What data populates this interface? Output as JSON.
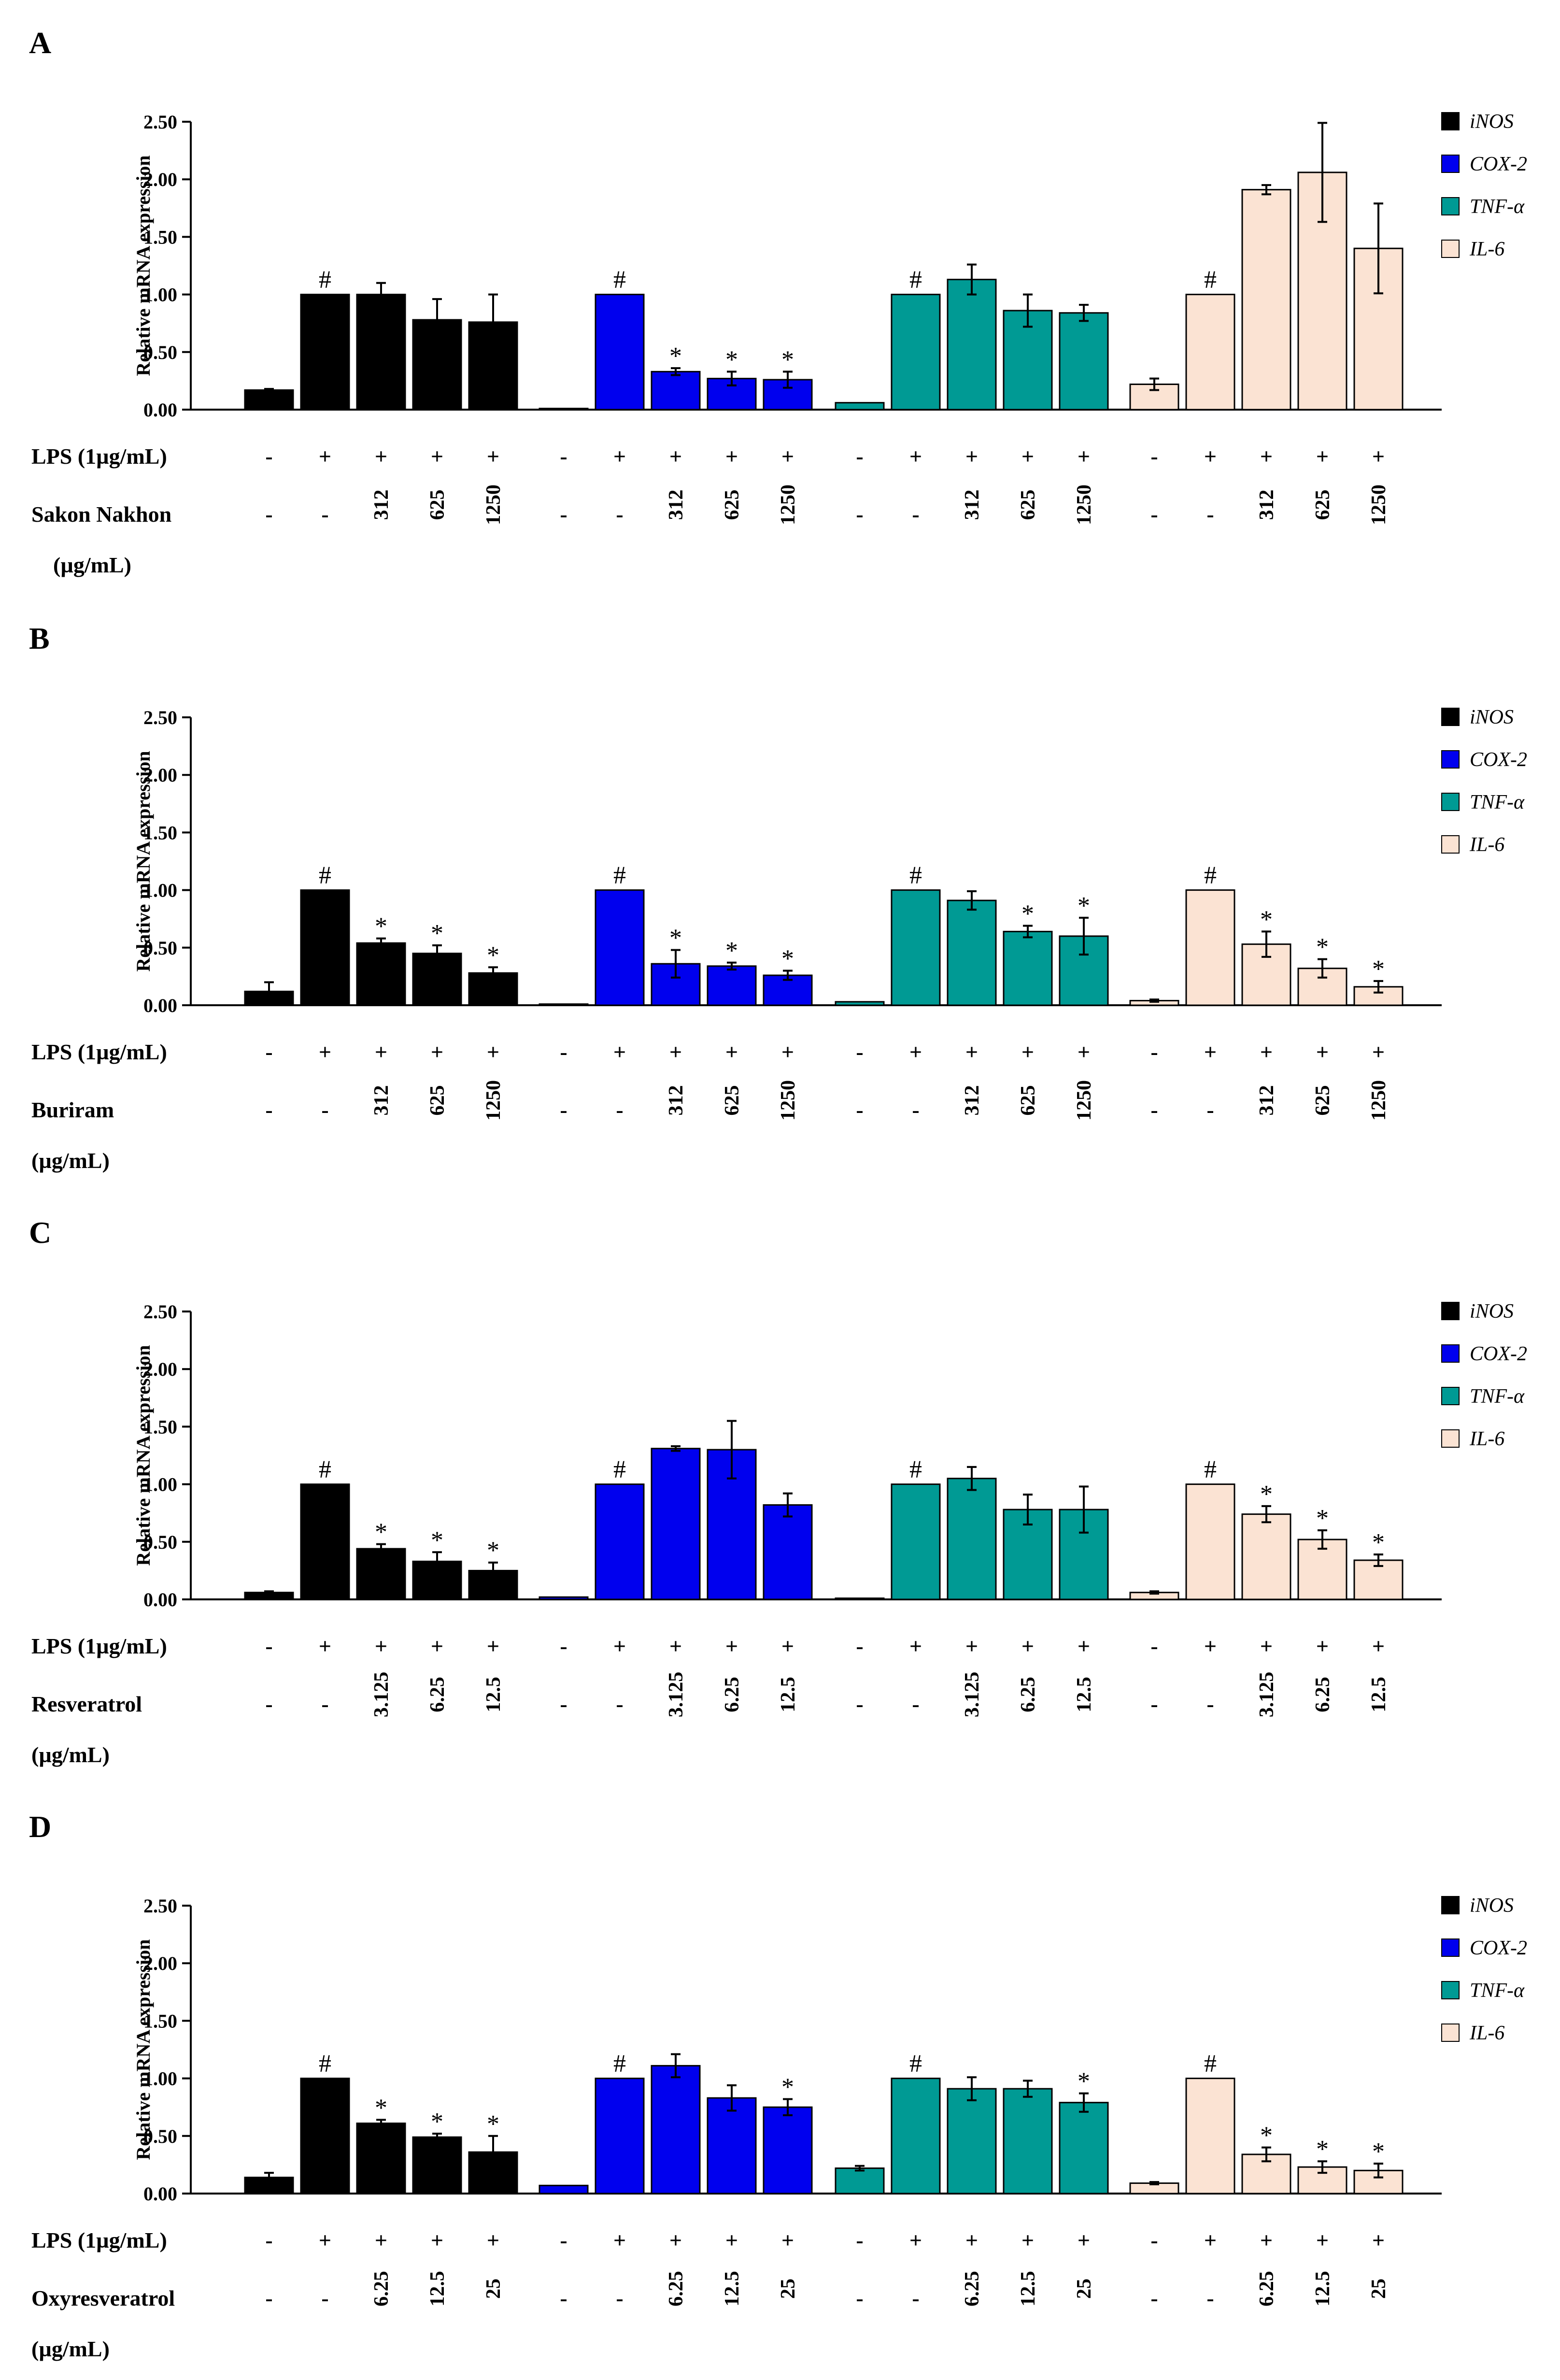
{
  "chart_data": [
    {
      "panel": "A",
      "type": "bar",
      "ylabel": "Relative mRNA expression",
      "ylim": [
        0,
        2.5
      ],
      "yticks": [
        "0.00",
        "0.50",
        "1.00",
        "1.50",
        "2.00",
        "2.50"
      ],
      "legend": [
        "iNOS",
        "COX-2",
        "TNF-α",
        "IL-6"
      ],
      "row_labels": {
        "lps": "LPS (1µg/mL)",
        "treatment": "Sakon Nakhon",
        "unit": "(µg/mL)"
      },
      "lps": [
        "-",
        "+",
        "+",
        "+",
        "+"
      ],
      "conc": [
        "-",
        "-",
        "312",
        "625",
        "1250"
      ],
      "series": [
        {
          "name": "iNOS",
          "color": "#000000",
          "values": [
            0.17,
            1.0,
            1.0,
            0.78,
            0.76
          ],
          "errors": [
            0.01,
            0.0,
            0.1,
            0.18,
            0.24
          ],
          "marks": [
            "",
            "#",
            "",
            "",
            ""
          ]
        },
        {
          "name": "COX-2",
          "color": "#0000ee",
          "values": [
            0.01,
            1.0,
            0.33,
            0.27,
            0.26
          ],
          "errors": [
            0.0,
            0.0,
            0.03,
            0.06,
            0.07
          ],
          "marks": [
            "",
            "#",
            "*",
            "*",
            "*"
          ]
        },
        {
          "name": "TNF-α",
          "color": "#009a94",
          "values": [
            0.06,
            1.0,
            1.13,
            0.86,
            0.84
          ],
          "errors": [
            0.0,
            0.0,
            0.13,
            0.14,
            0.07
          ],
          "marks": [
            "",
            "#",
            "",
            "",
            ""
          ]
        },
        {
          "name": "IL-6",
          "color": "#fbe3d3",
          "values": [
            0.22,
            1.0,
            1.91,
            2.06,
            1.4
          ],
          "errors": [
            0.05,
            0.0,
            0.04,
            0.43,
            0.39
          ],
          "marks": [
            "",
            "#",
            "",
            "",
            ""
          ]
        }
      ]
    },
    {
      "panel": "B",
      "type": "bar",
      "ylabel": "Relative mRNA expression",
      "ylim": [
        0,
        2.5
      ],
      "yticks": [
        "0.00",
        "0.50",
        "1.00",
        "1.50",
        "2.00",
        "2.50"
      ],
      "legend": [
        "iNOS",
        "COX-2",
        "TNF-α",
        "IL-6"
      ],
      "row_labels": {
        "lps": "LPS (1µg/mL)",
        "treatment": "Buriram",
        "unit": "(µg/mL)"
      },
      "lps": [
        "-",
        "+",
        "+",
        "+",
        "+"
      ],
      "conc": [
        "-",
        "-",
        "312",
        "625",
        "1250"
      ],
      "series": [
        {
          "name": "iNOS",
          "color": "#000000",
          "values": [
            0.12,
            1.0,
            0.54,
            0.45,
            0.28
          ],
          "errors": [
            0.08,
            0.0,
            0.04,
            0.07,
            0.05
          ],
          "marks": [
            "",
            "#",
            "*",
            "*",
            "*"
          ]
        },
        {
          "name": "COX-2",
          "color": "#0000ee",
          "values": [
            0.01,
            1.0,
            0.36,
            0.34,
            0.26
          ],
          "errors": [
            0.0,
            0.0,
            0.12,
            0.03,
            0.04
          ],
          "marks": [
            "",
            "#",
            "*",
            "*",
            "*"
          ]
        },
        {
          "name": "TNF-α",
          "color": "#009a94",
          "values": [
            0.03,
            1.0,
            0.91,
            0.64,
            0.6
          ],
          "errors": [
            0.0,
            0.0,
            0.08,
            0.05,
            0.16
          ],
          "marks": [
            "",
            "#",
            "",
            "*",
            "*"
          ]
        },
        {
          "name": "IL-6",
          "color": "#fbe3d3",
          "values": [
            0.04,
            1.0,
            0.53,
            0.32,
            0.16
          ],
          "errors": [
            0.01,
            0.0,
            0.11,
            0.08,
            0.05
          ],
          "marks": [
            "",
            "#",
            "*",
            "*",
            "*"
          ]
        }
      ]
    },
    {
      "panel": "C",
      "type": "bar",
      "ylabel": "Relative mRNA expression",
      "ylim": [
        0,
        2.5
      ],
      "yticks": [
        "0.00",
        "0.50",
        "1.00",
        "1.50",
        "2.00",
        "2.50"
      ],
      "legend": [
        "iNOS",
        "COX-2",
        "TNF-α",
        "IL-6"
      ],
      "row_labels": {
        "lps": "LPS (1µg/mL)",
        "treatment": "Resveratrol",
        "unit": "(µg/mL)"
      },
      "lps": [
        "-",
        "+",
        "+",
        "+",
        "+"
      ],
      "conc": [
        "-",
        "-",
        "3.125",
        "6.25",
        "12.5"
      ],
      "series": [
        {
          "name": "iNOS",
          "color": "#000000",
          "values": [
            0.06,
            1.0,
            0.44,
            0.33,
            0.25
          ],
          "errors": [
            0.01,
            0.0,
            0.04,
            0.08,
            0.07
          ],
          "marks": [
            "",
            "#",
            "*",
            "*",
            "*"
          ]
        },
        {
          "name": "COX-2",
          "color": "#0000ee",
          "values": [
            0.02,
            1.0,
            1.31,
            1.3,
            0.82
          ],
          "errors": [
            0.0,
            0.0,
            0.02,
            0.25,
            0.1
          ],
          "marks": [
            "",
            "#",
            "",
            "",
            ""
          ]
        },
        {
          "name": "TNF-α",
          "color": "#009a94",
          "values": [
            0.01,
            1.0,
            1.05,
            0.78,
            0.78
          ],
          "errors": [
            0.0,
            0.0,
            0.1,
            0.13,
            0.2
          ],
          "marks": [
            "",
            "#",
            "",
            "",
            ""
          ]
        },
        {
          "name": "IL-6",
          "color": "#fbe3d3",
          "values": [
            0.06,
            1.0,
            0.74,
            0.52,
            0.34
          ],
          "errors": [
            0.01,
            0.0,
            0.07,
            0.08,
            0.05
          ],
          "marks": [
            "",
            "#",
            "*",
            "*",
            "*"
          ]
        }
      ]
    },
    {
      "panel": "D",
      "type": "bar",
      "ylabel": "Relative mRNA expression",
      "ylim": [
        0,
        2.5
      ],
      "yticks": [
        "0.00",
        "0.50",
        "1.00",
        "1.50",
        "2.00",
        "2.50"
      ],
      "legend": [
        "iNOS",
        "COX-2",
        "TNF-α",
        "IL-6"
      ],
      "row_labels": {
        "lps": "LPS (1µg/mL)",
        "treatment": "Oxyresveratrol",
        "unit": "(µg/mL)"
      },
      "lps": [
        "-",
        "+",
        "+",
        "+",
        "+"
      ],
      "conc": [
        "-",
        "-",
        "6.25",
        "12.5",
        "25"
      ],
      "series": [
        {
          "name": "iNOS",
          "color": "#000000",
          "values": [
            0.14,
            1.0,
            0.61,
            0.49,
            0.36
          ],
          "errors": [
            0.04,
            0.0,
            0.03,
            0.03,
            0.14
          ],
          "marks": [
            "",
            "#",
            "*",
            "*",
            "*"
          ]
        },
        {
          "name": "COX-2",
          "color": "#0000ee",
          "values": [
            0.07,
            1.0,
            1.11,
            0.83,
            0.75
          ],
          "errors": [
            0.0,
            0.0,
            0.1,
            0.11,
            0.07
          ],
          "marks": [
            "",
            "#",
            "",
            "",
            "*"
          ]
        },
        {
          "name": "TNF-α",
          "color": "#009a94",
          "values": [
            0.22,
            1.0,
            0.91,
            0.91,
            0.79
          ],
          "errors": [
            0.02,
            0.0,
            0.1,
            0.07,
            0.08
          ],
          "marks": [
            "",
            "#",
            "",
            "",
            "*"
          ]
        },
        {
          "name": "IL-6",
          "color": "#fbe3d3",
          "values": [
            0.09,
            1.0,
            0.34,
            0.23,
            0.2
          ],
          "errors": [
            0.01,
            0.0,
            0.06,
            0.05,
            0.06
          ],
          "marks": [
            "",
            "#",
            "*",
            "*",
            "*"
          ]
        }
      ]
    }
  ]
}
